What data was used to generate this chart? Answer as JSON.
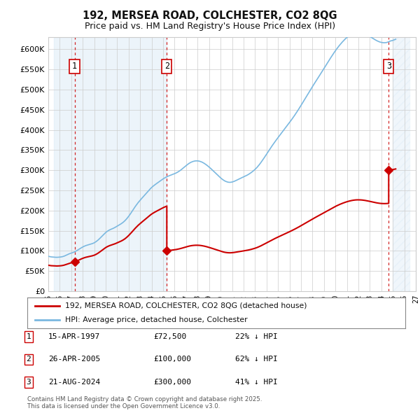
{
  "title": "192, MERSEA ROAD, COLCHESTER, CO2 8QG",
  "subtitle": "Price paid vs. HM Land Registry's House Price Index (HPI)",
  "yticks": [
    0,
    50000,
    100000,
    150000,
    200000,
    250000,
    300000,
    350000,
    400000,
    450000,
    500000,
    550000,
    600000
  ],
  "xlim_start": 1995.5,
  "xlim_end": 2026.5,
  "ylim": [
    0,
    630000
  ],
  "hpi_color": "#7ab8e0",
  "price_color": "#cc0000",
  "sale_marker_color": "#cc0000",
  "dashed_line_color": "#cc0000",
  "shade_color": "#daeaf7",
  "grid_color": "#cccccc",
  "background_color": "#ffffff",
  "legend_label_red": "192, MERSEA ROAD, COLCHESTER, CO2 8QG (detached house)",
  "legend_label_blue": "HPI: Average price, detached house, Colchester",
  "sale1_date": 1997.29,
  "sale1_price": 72500,
  "sale1_label": "1",
  "sale2_date": 2005.32,
  "sale2_price": 100000,
  "sale2_label": "2",
  "sale3_date": 2024.64,
  "sale3_price": 300000,
  "sale3_label": "3",
  "table_entries": [
    {
      "num": "1",
      "date": "15-APR-1997",
      "price": "£72,500",
      "hpi_diff": "22% ↓ HPI"
    },
    {
      "num": "2",
      "date": "26-APR-2005",
      "price": "£100,000",
      "hpi_diff": "62% ↓ HPI"
    },
    {
      "num": "3",
      "date": "21-AUG-2024",
      "price": "£300,000",
      "hpi_diff": "41% ↓ HPI"
    }
  ],
  "footnote": "Contains HM Land Registry data © Crown copyright and database right 2025.\nThis data is licensed under the Open Government Licence v3.0.",
  "hpi_index_x": [
    1995.0,
    1995.083,
    1995.167,
    1995.25,
    1995.333,
    1995.417,
    1995.5,
    1995.583,
    1995.667,
    1995.75,
    1995.833,
    1995.917,
    1996.0,
    1996.083,
    1996.167,
    1996.25,
    1996.333,
    1996.417,
    1996.5,
    1996.583,
    1996.667,
    1996.75,
    1996.833,
    1996.917,
    1997.0,
    1997.083,
    1997.167,
    1997.25,
    1997.333,
    1997.417,
    1997.5,
    1997.583,
    1997.667,
    1997.75,
    1997.833,
    1997.917,
    1998.0,
    1998.083,
    1998.167,
    1998.25,
    1998.333,
    1998.417,
    1998.5,
    1998.583,
    1998.667,
    1998.75,
    1998.833,
    1998.917,
    1999.0,
    1999.083,
    1999.167,
    1999.25,
    1999.333,
    1999.417,
    1999.5,
    1999.583,
    1999.667,
    1999.75,
    1999.833,
    1999.917,
    2000.0,
    2000.083,
    2000.167,
    2000.25,
    2000.333,
    2000.417,
    2000.5,
    2000.583,
    2000.667,
    2000.75,
    2000.833,
    2000.917,
    2001.0,
    2001.083,
    2001.167,
    2001.25,
    2001.333,
    2001.417,
    2001.5,
    2001.583,
    2001.667,
    2001.75,
    2001.833,
    2001.917,
    2002.0,
    2002.083,
    2002.167,
    2002.25,
    2002.333,
    2002.417,
    2002.5,
    2002.583,
    2002.667,
    2002.75,
    2002.833,
    2002.917,
    2003.0,
    2003.083,
    2003.167,
    2003.25,
    2003.333,
    2003.417,
    2003.5,
    2003.583,
    2003.667,
    2003.75,
    2003.833,
    2003.917,
    2004.0,
    2004.083,
    2004.167,
    2004.25,
    2004.333,
    2004.417,
    2004.5,
    2004.583,
    2004.667,
    2004.75,
    2004.833,
    2004.917,
    2005.0,
    2005.083,
    2005.167,
    2005.25,
    2005.333,
    2005.417,
    2005.5,
    2005.583,
    2005.667,
    2005.75,
    2005.833,
    2005.917,
    2006.0,
    2006.083,
    2006.167,
    2006.25,
    2006.333,
    2006.417,
    2006.5,
    2006.583,
    2006.667,
    2006.75,
    2006.833,
    2006.917,
    2007.0,
    2007.083,
    2007.167,
    2007.25,
    2007.333,
    2007.417,
    2007.5,
    2007.583,
    2007.667,
    2007.75,
    2007.833,
    2007.917,
    2008.0,
    2008.083,
    2008.167,
    2008.25,
    2008.333,
    2008.417,
    2008.5,
    2008.583,
    2008.667,
    2008.75,
    2008.833,
    2008.917,
    2009.0,
    2009.083,
    2009.167,
    2009.25,
    2009.333,
    2009.417,
    2009.5,
    2009.583,
    2009.667,
    2009.75,
    2009.833,
    2009.917,
    2010.0,
    2010.083,
    2010.167,
    2010.25,
    2010.333,
    2010.417,
    2010.5,
    2010.583,
    2010.667,
    2010.75,
    2010.833,
    2010.917,
    2011.0,
    2011.083,
    2011.167,
    2011.25,
    2011.333,
    2011.417,
    2011.5,
    2011.583,
    2011.667,
    2011.75,
    2011.833,
    2011.917,
    2012.0,
    2012.083,
    2012.167,
    2012.25,
    2012.333,
    2012.417,
    2012.5,
    2012.583,
    2012.667,
    2012.75,
    2012.833,
    2012.917,
    2013.0,
    2013.083,
    2013.167,
    2013.25,
    2013.333,
    2013.417,
    2013.5,
    2013.583,
    2013.667,
    2013.75,
    2013.833,
    2013.917,
    2014.0,
    2014.083,
    2014.167,
    2014.25,
    2014.333,
    2014.417,
    2014.5,
    2014.583,
    2014.667,
    2014.75,
    2014.833,
    2014.917,
    2015.0,
    2015.083,
    2015.167,
    2015.25,
    2015.333,
    2015.417,
    2015.5,
    2015.583,
    2015.667,
    2015.75,
    2015.833,
    2015.917,
    2016.0,
    2016.083,
    2016.167,
    2016.25,
    2016.333,
    2016.417,
    2016.5,
    2016.583,
    2016.667,
    2016.75,
    2016.833,
    2016.917,
    2017.0,
    2017.083,
    2017.167,
    2017.25,
    2017.333,
    2017.417,
    2017.5,
    2017.583,
    2017.667,
    2017.75,
    2017.833,
    2017.917,
    2018.0,
    2018.083,
    2018.167,
    2018.25,
    2018.333,
    2018.417,
    2018.5,
    2018.583,
    2018.667,
    2018.75,
    2018.833,
    2018.917,
    2019.0,
    2019.083,
    2019.167,
    2019.25,
    2019.333,
    2019.417,
    2019.5,
    2019.583,
    2019.667,
    2019.75,
    2019.833,
    2019.917,
    2020.0,
    2020.083,
    2020.167,
    2020.25,
    2020.333,
    2020.417,
    2020.5,
    2020.583,
    2020.667,
    2020.75,
    2020.833,
    2020.917,
    2021.0,
    2021.083,
    2021.167,
    2021.25,
    2021.333,
    2021.417,
    2021.5,
    2021.583,
    2021.667,
    2021.75,
    2021.833,
    2021.917,
    2022.0,
    2022.083,
    2022.167,
    2022.25,
    2022.333,
    2022.417,
    2022.5,
    2022.583,
    2022.667,
    2022.75,
    2022.833,
    2022.917,
    2023.0,
    2023.083,
    2023.167,
    2023.25,
    2023.333,
    2023.417,
    2023.5,
    2023.583,
    2023.667,
    2023.75,
    2023.833,
    2023.917,
    2024.0,
    2024.083,
    2024.167,
    2024.25,
    2024.333,
    2024.417,
    2024.5,
    2024.583,
    2024.667,
    2024.75,
    2025.0,
    2025.25
  ],
  "hpi_index_y": [
    86500,
    86000,
    85500,
    85000,
    84800,
    84600,
    84400,
    84200,
    84000,
    84000,
    84100,
    84300,
    84500,
    84800,
    85200,
    85700,
    86400,
    87300,
    88400,
    89500,
    90700,
    91800,
    92800,
    93700,
    94500,
    95200,
    96000,
    97000,
    98100,
    99400,
    100900,
    102400,
    104000,
    105500,
    106900,
    108300,
    109600,
    110800,
    111900,
    112900,
    113700,
    114400,
    115100,
    115800,
    116500,
    117200,
    118000,
    118900,
    120000,
    121400,
    123000,
    124800,
    126800,
    129000,
    131300,
    133700,
    136200,
    138700,
    141100,
    143400,
    145500,
    147400,
    149100,
    150600,
    151900,
    153000,
    154000,
    155000,
    156000,
    157200,
    158500,
    159900,
    161300,
    162700,
    164100,
    165500,
    167000,
    168600,
    170400,
    172400,
    174600,
    177100,
    179800,
    182700,
    185800,
    189100,
    192500,
    196100,
    199700,
    203300,
    206900,
    210400,
    213700,
    216900,
    220000,
    222900,
    225700,
    228400,
    231100,
    233800,
    236500,
    239200,
    241900,
    244600,
    247300,
    250000,
    252600,
    255000,
    257300,
    259400,
    261400,
    263200,
    265000,
    266700,
    268400,
    270100,
    271800,
    273500,
    275200,
    276900,
    278500,
    280000,
    281400,
    282700,
    283900,
    285000,
    286000,
    286900,
    287800,
    288700,
    289600,
    290500,
    291500,
    292500,
    293700,
    295000,
    296400,
    298000,
    299700,
    301500,
    303400,
    305400,
    307400,
    309400,
    311400,
    313300,
    315100,
    316800,
    318300,
    319600,
    320700,
    321600,
    322300,
    322800,
    323100,
    323200,
    323100,
    322800,
    322300,
    321600,
    320700,
    319600,
    318300,
    316900,
    315300,
    313600,
    311800,
    309900,
    307900,
    305800,
    303700,
    301500,
    299300,
    297000,
    294700,
    292400,
    290100,
    287800,
    285500,
    283300,
    281100,
    279100,
    277200,
    275500,
    274000,
    272700,
    271700,
    270900,
    270300,
    270000,
    270000,
    270200,
    270700,
    271400,
    272200,
    273200,
    274300,
    275500,
    276700,
    277900,
    279000,
    280100,
    281200,
    282300,
    283400,
    284500,
    285600,
    286800,
    288000,
    289400,
    290900,
    292500,
    294200,
    296000,
    297900,
    299900,
    302000,
    304300,
    306800,
    309500,
    312400,
    315400,
    318600,
    321900,
    325300,
    328800,
    332400,
    336000,
    339700,
    343400,
    347000,
    350600,
    354200,
    357700,
    361100,
    364500,
    367800,
    371100,
    374400,
    377600,
    380800,
    383900,
    387000,
    390100,
    393200,
    396300,
    399400,
    402500,
    405600,
    408700,
    411800,
    414900,
    418100,
    421400,
    424700,
    428000,
    431400,
    434800,
    438300,
    441800,
    445400,
    449100,
    452800,
    456600,
    460500,
    464400,
    468300,
    472200,
    476100,
    480000,
    483900,
    487800,
    491700,
    495600,
    499500,
    503400,
    507300,
    511100,
    514900,
    518600,
    522300,
    526000,
    529700,
    533400,
    537100,
    540800,
    544600,
    548400,
    552200,
    556000,
    559800,
    563600,
    567400,
    571200,
    574900,
    578600,
    582300,
    585900,
    589500,
    593000,
    596400,
    599700,
    602900,
    606000,
    609000,
    611900,
    614700,
    617400,
    620000,
    622500,
    624900,
    627200,
    629300,
    631300,
    633200,
    634900,
    636500,
    637900,
    639200,
    640300,
    641200,
    641900,
    642400,
    642700,
    642700,
    642600,
    642300,
    641900,
    641300,
    640500,
    639600,
    638500,
    637300,
    636000,
    634600,
    633200,
    631700,
    630200,
    628700,
    627200,
    625700,
    624300,
    622900,
    621600,
    620400,
    619300,
    618400,
    617600,
    617000,
    616600,
    616300,
    616200,
    616300,
    616600,
    617100,
    617900,
    618900,
    620200,
    622000,
    625000
  ]
}
